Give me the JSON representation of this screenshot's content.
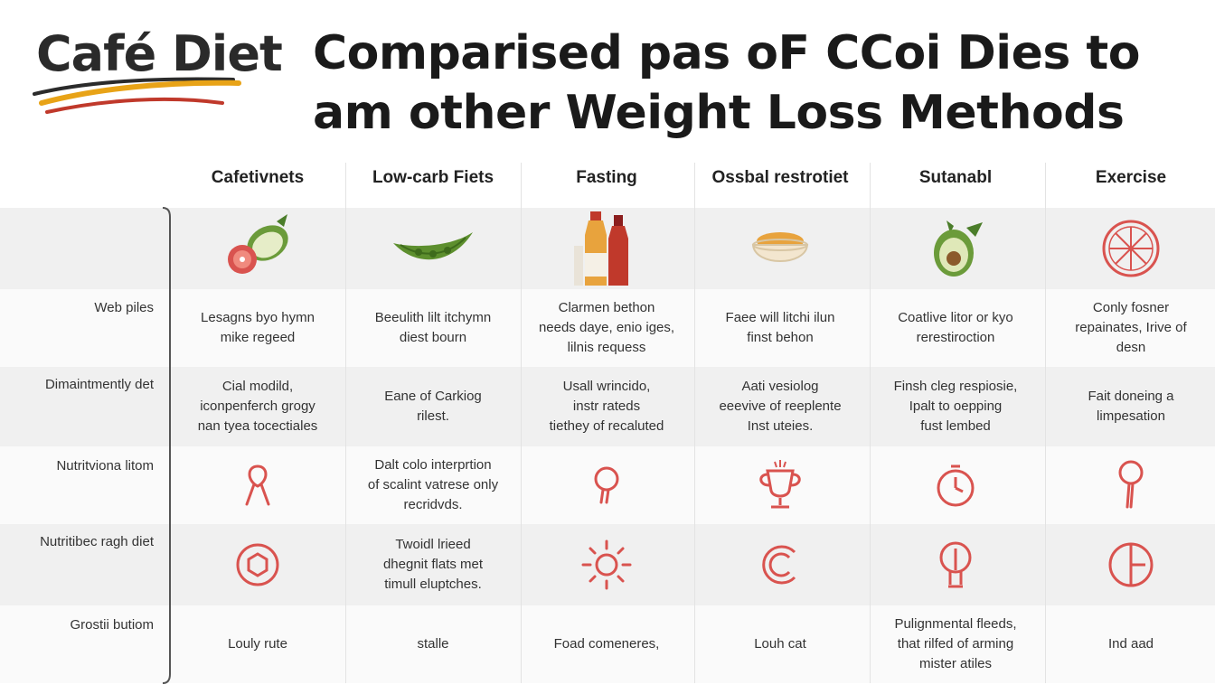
{
  "logo": {
    "text": "Café Diet",
    "swoosh_colors": [
      "#2b2b2b",
      "#e8a317",
      "#c0392b"
    ]
  },
  "title": {
    "line1": "Comparised pas oF CCoi Dies to",
    "line2": "am other  Weight Loss Methods"
  },
  "columns": [
    "Cafetivnets",
    "Low-carb Fiets",
    "Fasting",
    "Ossbal restrotiet",
    "Sutanabl",
    "Exercise"
  ],
  "icon_row": {
    "icons": [
      "fruit-icon",
      "leaf-pod-icon",
      "bottles-icon",
      "bowl-icon",
      "avocado-icon",
      "citrus-slice-icon"
    ]
  },
  "rows": [
    {
      "label": "Web piles",
      "cells": [
        "Lesagns byo hymn\nmike regeed",
        "Beeulith lilt itchymn\ndiest bourn",
        "Clarmen bethon\nneeds daye, enio iges,\nlilnis requess",
        "Faee will litchi ilun\nfinst behon",
        "Coatlive litor or kyo\nrerestiroction",
        "Conly fosner\nrepainates, Irive of\ndesn"
      ]
    },
    {
      "label": "Dimaintmently det",
      "cells": [
        "Cial modild,\niconpenferch grogy\nnan tyea tocectiales",
        "Eane of Carkiog\nrilest.",
        "Usall wrincido,\ninstr rateds\ntiethey of recaluted",
        "Aati vesiolog\neeevive of reeplente\nInst uteies.",
        "Finsh cleg respiosie,\nIpalt to oepping\nfust lembed",
        "Fait doneing a\nlimpesation"
      ]
    },
    {
      "label": "Nutritviona litom",
      "cells": [
        "",
        "Dalt colo interprtion\nof scalint vatrese only\nrecridvds.",
        "",
        "",
        "",
        ""
      ],
      "icons": [
        "ribbon-icon",
        "",
        "drumstick-icon",
        "trophy-cup-icon",
        "stopwatch-icon",
        "pin-icon"
      ]
    },
    {
      "label": "Nutritibec ragh diet",
      "cells": [
        "",
        "Twoidl lrieed\ndhegnit flats met\ntimull eluptches.",
        "",
        "",
        "",
        ""
      ],
      "icons": [
        "ring-icon",
        "",
        "sun-icon",
        "copyright-c-icon",
        "lightbulb-icon",
        "circle-t-icon"
      ]
    },
    {
      "label": "Grostii butiom",
      "cells": [
        "Louly rute",
        "stalle",
        "Foad comeneres,",
        "Louh cat",
        "Pulignmental fleeds,\nthat rilfed of arming\nmister atiles",
        "Ind aad"
      ]
    }
  ],
  "colors": {
    "icon_red": "#d9534f",
    "shade": "#f0f0f0"
  }
}
